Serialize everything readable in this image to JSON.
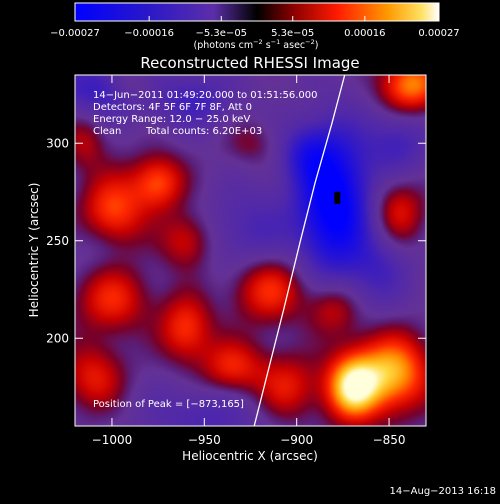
{
  "chart_data": {
    "type": "heatmap",
    "title": "Reconstructed RHESSI Image",
    "xlabel": "Heliocentric X (arcsec)",
    "ylabel": "Heliocentric Y (arcsec)",
    "xlim": [
      -1020,
      -830
    ],
    "ylim": [
      155,
      335
    ],
    "x_ticks": [
      -1000,
      -950,
      -900,
      -850
    ],
    "x_tick_labels": [
      "−1000",
      "−950",
      "−900",
      "−850"
    ],
    "y_ticks": [
      200,
      250,
      300
    ],
    "y_tick_labels": [
      "200",
      "250",
      "300"
    ],
    "colorbar": {
      "range": [
        -0.00027,
        0.00027
      ],
      "ticks": [
        -0.00027,
        -0.00016,
        -5.3e-05,
        5.3e-05,
        0.00016,
        0.00027
      ],
      "tick_labels": [
        "−0.00027",
        "−0.00016",
        "−5.3e−05",
        "5.3e−05",
        "0.00016",
        "0.00027"
      ],
      "units_prefix": "(photons cm",
      "units_exp1": "−2",
      "units_mid": " s",
      "units_exp2": "−1",
      "units_mid2": " asec",
      "units_exp3": "−2",
      "units_suffix": ")"
    },
    "annotations": {
      "time_range": "14−Jun−2011 01:49:20.000 to 01:51:56.000",
      "detectors": "Detectors: 4F 5F 6F 7F 8F, Att 0",
      "energy": "Energy Range: 12.0 − 25.0 keV",
      "method": "Clean",
      "total_counts": "Total counts: 6.20E+03",
      "peak": "Position of Peak = [−873,165]"
    },
    "peak": [
      -873,
      165
    ],
    "min_marker": [
      -878,
      272
    ],
    "limb_curve": [
      [
        -923,
        155
      ],
      [
        -915,
        185
      ],
      [
        -907,
        215
      ],
      [
        -898,
        250
      ],
      [
        -890,
        280
      ],
      [
        -881,
        310
      ],
      [
        -874,
        335
      ]
    ],
    "blobs": [
      {
        "x": -880,
        "y": 270,
        "sx": 14,
        "sy": 26,
        "a": -1.0
      },
      {
        "x": -895,
        "y": 295,
        "sx": 10,
        "sy": 10,
        "a": -0.35
      },
      {
        "x": -1005,
        "y": 328,
        "sx": 18,
        "sy": 10,
        "a": -0.45
      },
      {
        "x": -955,
        "y": 322,
        "sx": 16,
        "sy": 10,
        "a": -0.35
      },
      {
        "x": -845,
        "y": 300,
        "sx": 12,
        "sy": 12,
        "a": -0.35
      },
      {
        "x": -925,
        "y": 255,
        "sx": 16,
        "sy": 16,
        "a": -0.3
      },
      {
        "x": -1005,
        "y": 250,
        "sx": 12,
        "sy": 12,
        "a": -0.25
      },
      {
        "x": -855,
        "y": 235,
        "sx": 12,
        "sy": 14,
        "a": -0.3
      },
      {
        "x": -950,
        "y": 160,
        "sx": 22,
        "sy": 12,
        "a": -0.3
      },
      {
        "x": -990,
        "y": 330,
        "sx": 9,
        "sy": 7,
        "a": 0.3
      },
      {
        "x": -838,
        "y": 330,
        "sx": 12,
        "sy": 10,
        "a": 0.75
      },
      {
        "x": -1000,
        "y": 263,
        "sx": 12,
        "sy": 14,
        "a": 0.7
      },
      {
        "x": -975,
        "y": 280,
        "sx": 10,
        "sy": 10,
        "a": 0.6
      },
      {
        "x": -1000,
        "y": 220,
        "sx": 14,
        "sy": 12,
        "a": 0.5
      },
      {
        "x": -960,
        "y": 250,
        "sx": 10,
        "sy": 10,
        "a": 0.4
      },
      {
        "x": -960,
        "y": 205,
        "sx": 10,
        "sy": 12,
        "a": 0.55
      },
      {
        "x": -935,
        "y": 185,
        "sx": 12,
        "sy": 10,
        "a": 0.5
      },
      {
        "x": -1010,
        "y": 180,
        "sx": 12,
        "sy": 12,
        "a": 0.45
      },
      {
        "x": -915,
        "y": 225,
        "sx": 14,
        "sy": 12,
        "a": 0.55
      },
      {
        "x": -905,
        "y": 175,
        "sx": 12,
        "sy": 12,
        "a": 0.45
      },
      {
        "x": -870,
        "y": 175,
        "sx": 10,
        "sy": 12,
        "a": 1.0
      },
      {
        "x": -848,
        "y": 182,
        "sx": 14,
        "sy": 14,
        "a": 0.85
      },
      {
        "x": -880,
        "y": 215,
        "sx": 10,
        "sy": 10,
        "a": 0.4
      },
      {
        "x": -845,
        "y": 265,
        "sx": 10,
        "sy": 12,
        "a": 0.45
      },
      {
        "x": -925,
        "y": 300,
        "sx": 10,
        "sy": 8,
        "a": 0.2
      },
      {
        "x": -1015,
        "y": 300,
        "sx": 8,
        "sy": 10,
        "a": 0.3
      }
    ]
  },
  "footer": {
    "date": "14−Aug−2013 16:18"
  }
}
